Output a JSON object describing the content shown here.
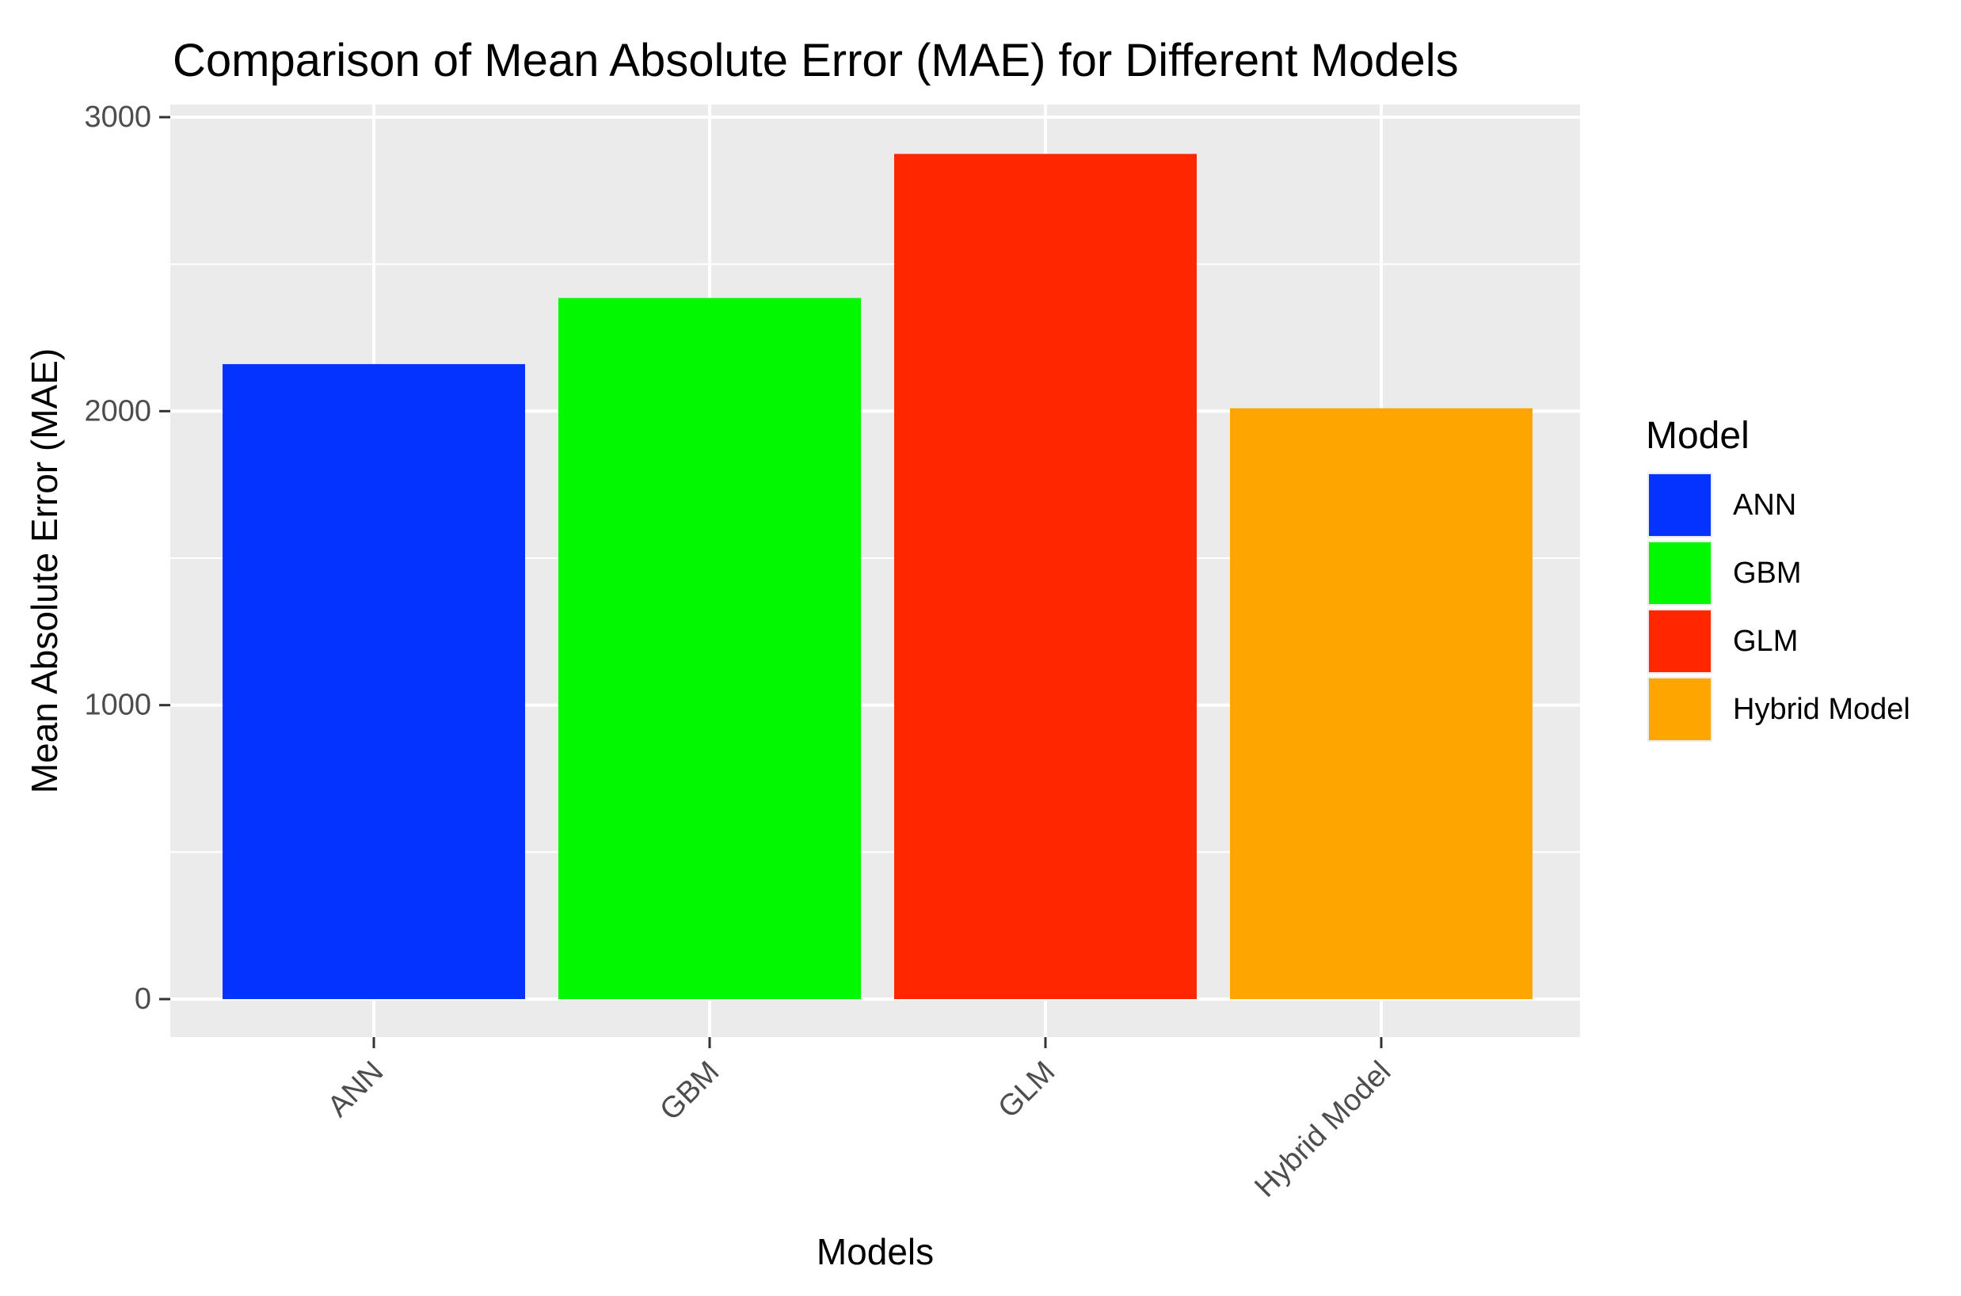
{
  "chart_data": {
    "type": "bar",
    "title": "Comparison of Mean Absolute Error (MAE) for Different Models",
    "xlabel": "Models",
    "ylabel": "Mean Absolute Error (MAE)",
    "categories": [
      "ANN",
      "GBM",
      "GLM",
      "Hybrid Model"
    ],
    "values": [
      2160,
      2385,
      2875,
      2010
    ],
    "colors": [
      "#0433ff",
      "#00f900",
      "#ff2600",
      "#ffa500"
    ],
    "ylim": [
      0,
      3000
    ],
    "yticks": [
      0,
      1000,
      2000,
      3000
    ],
    "ytick_labels": [
      "0",
      "1000",
      "2000",
      "3000"
    ],
    "grid": true,
    "panel_background": "#ebebeb",
    "legend": {
      "title": "Model",
      "position": "right",
      "entries": [
        "ANN",
        "GBM",
        "GLM",
        "Hybrid Model"
      ]
    }
  }
}
